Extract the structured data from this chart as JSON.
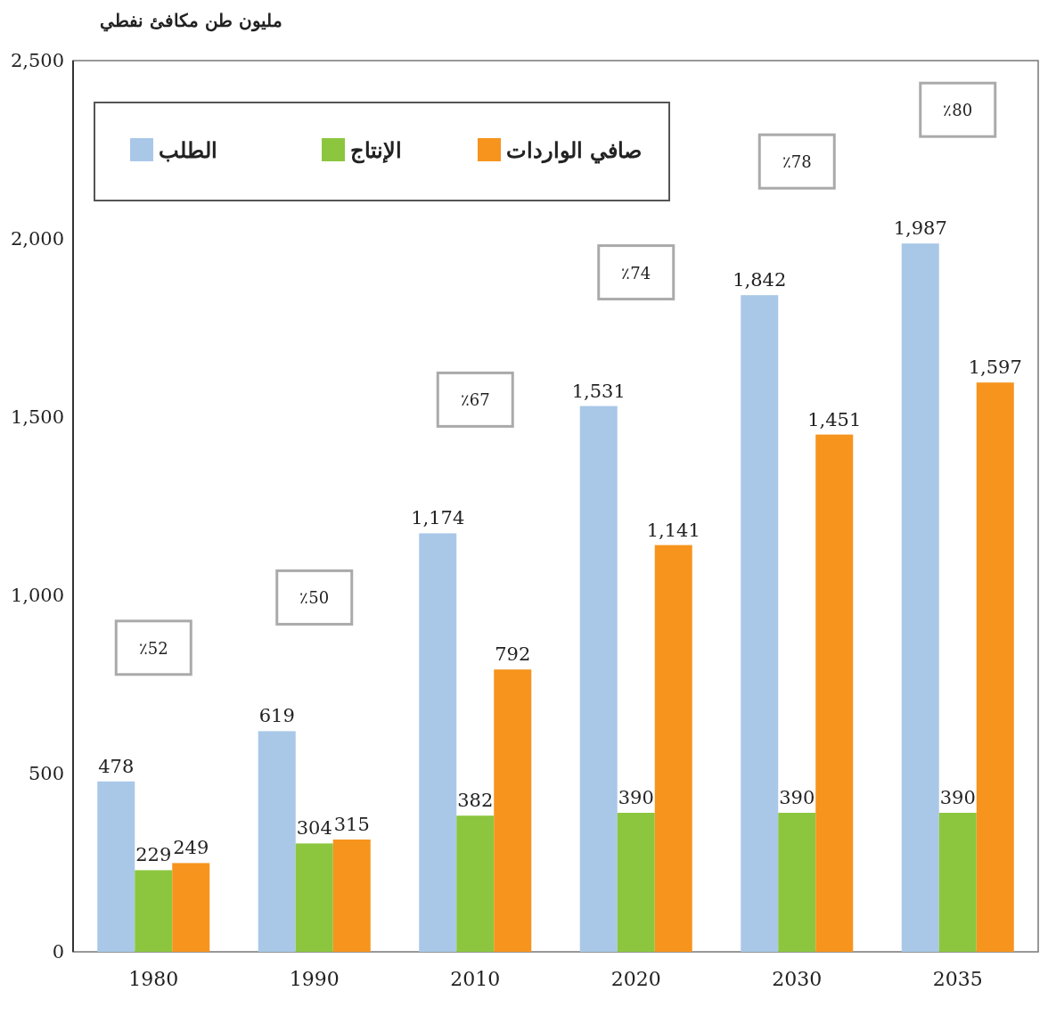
{
  "chart_data": {
    "type": "bar",
    "ylabel": "مليون طن مكافئ نفطي",
    "categories": [
      "1980",
      "1990",
      "2010",
      "2020",
      "2030",
      "2035"
    ],
    "series": [
      {
        "name": "الطلب",
        "color": "#a9c8e8",
        "values": [
          478,
          619,
          1174,
          1531,
          1842,
          1987
        ],
        "value_labels": [
          "478",
          "619",
          "1,174",
          "1,531",
          "1,842",
          "1,987"
        ]
      },
      {
        "name": "الإنتاج",
        "color": "#8cc63f",
        "values": [
          229,
          304,
          382,
          390,
          390,
          390
        ],
        "value_labels": [
          "229",
          "304",
          "382",
          "390",
          "390",
          "390"
        ]
      },
      {
        "name": "صافي الواردات",
        "color": "#f7941d",
        "values": [
          249,
          315,
          792,
          1141,
          1451,
          1597
        ],
        "value_labels": [
          "249",
          "315",
          "792",
          "1,141",
          "1,451",
          "1,597"
        ]
      }
    ],
    "ylim": [
      0,
      2500
    ],
    "yticks": [
      0,
      500,
      {
        "value": 1000,
        "label": "1,000"
      },
      {
        "value": 1500,
        "label": "1,500"
      },
      {
        "value": 2000,
        "label": "2,000"
      },
      {
        "value": 2500,
        "label": "2,500"
      }
    ],
    "legend": "top left",
    "grid": false,
    "annotations": [
      "٪52",
      "٪50",
      "٪67",
      "٪74",
      "٪78",
      "٪80"
    ]
  }
}
